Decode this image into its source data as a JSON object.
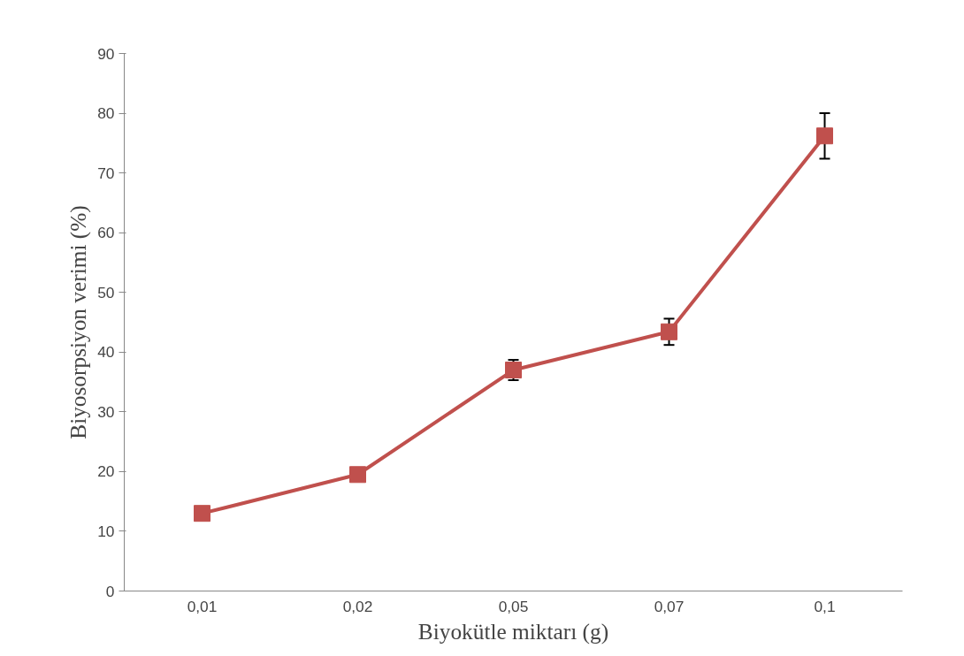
{
  "chart_data": {
    "type": "line",
    "xlabel": "Biyokütle miktarı (g)",
    "ylabel": "Biyosorpsiyon verimi (%)",
    "categories": [
      "0,01",
      "0,02",
      "0,05",
      "0,07",
      "0,1"
    ],
    "series": [
      {
        "color": "#c0504d",
        "values": [
          13.0,
          19.5,
          37.0,
          43.4,
          76.2
        ],
        "errors": [
          null,
          null,
          1.7,
          2.2,
          3.8
        ]
      }
    ],
    "ylim": [
      0,
      90
    ],
    "yticks": [
      0,
      10,
      20,
      30,
      40,
      50,
      60,
      70,
      80,
      90
    ],
    "marker": "square",
    "line_style": "solid",
    "grid": false
  }
}
